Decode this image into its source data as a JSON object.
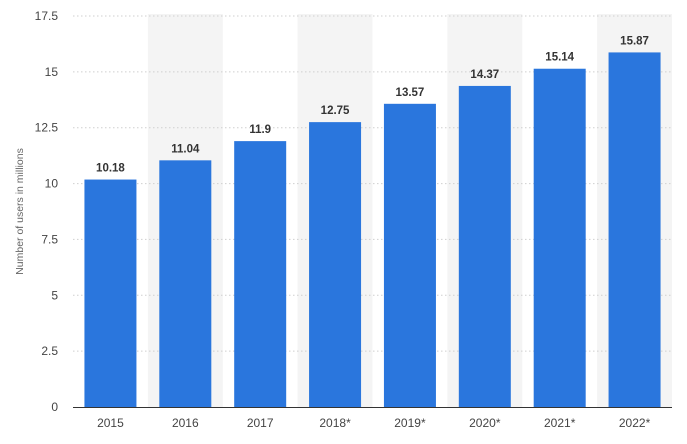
{
  "chart_data": {
    "type": "bar",
    "categories": [
      "2015",
      "2016",
      "2017",
      "2018*",
      "2019*",
      "2020*",
      "2021*",
      "2022*"
    ],
    "values": [
      10.18,
      11.04,
      11.9,
      12.75,
      13.57,
      14.37,
      15.14,
      15.87
    ],
    "value_labels": [
      "10.18",
      "11.04",
      "11.9",
      "12.75",
      "13.57",
      "14.37",
      "15.14",
      "15.87"
    ],
    "title": "",
    "xlabel": "",
    "ylabel": "Number of users in millions",
    "ylim": [
      0,
      17.5
    ],
    "yticks": [
      0,
      2.5,
      5,
      7.5,
      10,
      12.5,
      15,
      17.5
    ],
    "ytick_labels": [
      "0",
      "2.5",
      "5",
      "7.5",
      "10",
      "12.5",
      "15",
      "17.5"
    ],
    "grid": true,
    "legend": "none",
    "bar_color": "#2a76dd",
    "band_color": "#f4f4f4"
  }
}
